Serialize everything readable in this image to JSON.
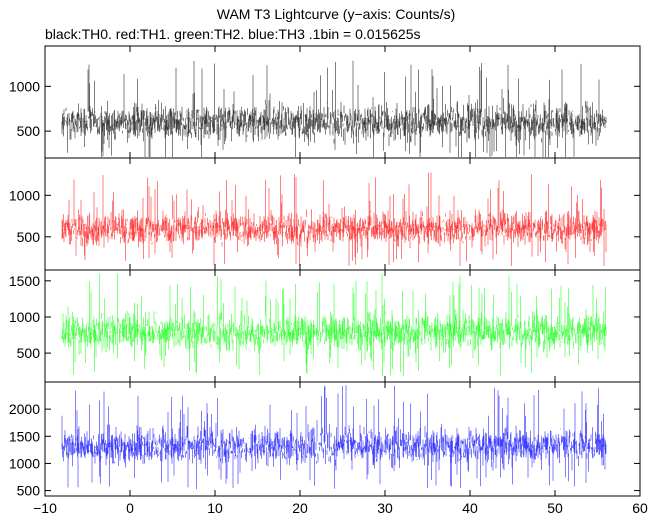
{
  "chart_data": {
    "type": "line",
    "title": "WAM T3 Lightcurve (y−axis: Counts/s)",
    "subtitle": "black:TH0. red:TH1. green:TH2. blue:TH3 .1bin = 0.015625s",
    "xlabel": "",
    "x_range": [
      -10,
      60
    ],
    "x_ticks": [
      -10,
      0,
      10,
      20,
      30,
      40,
      50,
      60
    ],
    "x_tick_labels": [
      "−10",
      "0",
      "10",
      "20",
      "30",
      "40",
      "50",
      "60"
    ],
    "data_x_range": [
      -8.0,
      56.0
    ],
    "bin_size_s": 0.015625,
    "panels": [
      {
        "name": "TH0",
        "color": "#000000",
        "y_range": [
          200,
          1450
        ],
        "y_ticks": [
          500,
          1000
        ],
        "y_tick_labels": [
          "500",
          "1000"
        ],
        "mean": 600,
        "spread": 260,
        "min": 80,
        "max": 1400
      },
      {
        "name": "TH1",
        "color": "#ff0000",
        "y_range": [
          100,
          1450
        ],
        "y_ticks": [
          500,
          1000
        ],
        "y_tick_labels": [
          "500",
          "1000"
        ],
        "mean": 600,
        "spread": 250,
        "min": 150,
        "max": 1350
      },
      {
        "name": "TH2",
        "color": "#00ff00",
        "y_range": [
          100,
          1650
        ],
        "y_ticks": [
          500,
          1000,
          1500
        ],
        "y_tick_labels": [
          "500",
          "1000",
          "1500"
        ],
        "mean": 790,
        "spread": 320,
        "min": 150,
        "max": 1600
      },
      {
        "name": "TH3",
        "color": "#0000ff",
        "y_range": [
          400,
          2500
        ],
        "y_ticks": [
          500,
          1000,
          1500,
          2000
        ],
        "y_tick_labels": [
          "500",
          "1000",
          "1500",
          "2000"
        ],
        "mean": 1320,
        "spread": 420,
        "min": 420,
        "max": 2450
      }
    ],
    "grid": false,
    "legend": "subtitle-text"
  }
}
